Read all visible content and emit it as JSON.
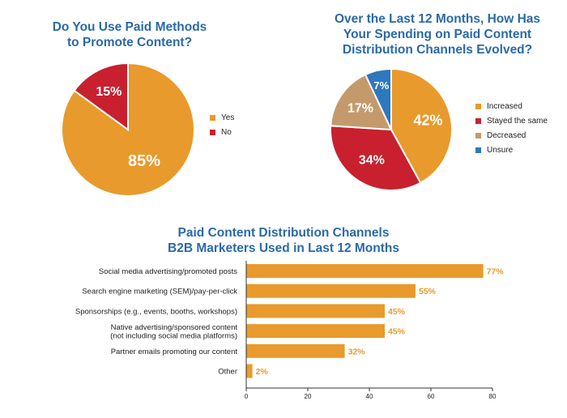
{
  "chart_data": [
    {
      "type": "pie",
      "title": "Do You Use Paid Methods\nto Promote Content?",
      "slices": [
        {
          "label": "Yes",
          "value": 85,
          "display": "85%",
          "color": "#e89a2c"
        },
        {
          "label": "No",
          "value": 15,
          "display": "15%",
          "color": "#c8202f"
        }
      ],
      "legend_position": "right"
    },
    {
      "type": "pie",
      "title": "Over the Last 12 Months, How Has\nYour Spending on Paid Content\nDistribution Channels Evolved?",
      "slices": [
        {
          "label": "Increased",
          "value": 42,
          "display": "42%",
          "color": "#e89a2c"
        },
        {
          "label": "Stayed the same",
          "value": 34,
          "display": "34%",
          "color": "#c8202f"
        },
        {
          "label": "Decreased",
          "value": 17,
          "display": "17%",
          "color": "#c49a6c"
        },
        {
          "label": "Unsure",
          "value": 7,
          "display": "7%",
          "color": "#2e78bd"
        }
      ],
      "legend_position": "right"
    },
    {
      "type": "bar",
      "orientation": "horizontal",
      "title": "Paid Content Distribution Channels\nB2B Marketers Used in Last 12 Months",
      "categories": [
        "Social media advertising/promoted posts",
        "Search engine marketing (SEM)/pay-per-click",
        "Sponsorships (e.g., events, booths, workshops)",
        "Native advertising/sponsored content\n(not including social media platforms)",
        "Partner emails promoting our content",
        "Other"
      ],
      "values": [
        77,
        55,
        45,
        45,
        32,
        2
      ],
      "value_labels": [
        "77%",
        "55%",
        "45%",
        "45%",
        "32%",
        "2%"
      ],
      "xlim": [
        0,
        80
      ],
      "ticks": [
        0,
        20,
        40,
        60,
        80
      ],
      "tick_labels": [
        "0",
        "20",
        "40",
        "60",
        "80"
      ],
      "color": "#e89a2c",
      "grid": false
    }
  ]
}
